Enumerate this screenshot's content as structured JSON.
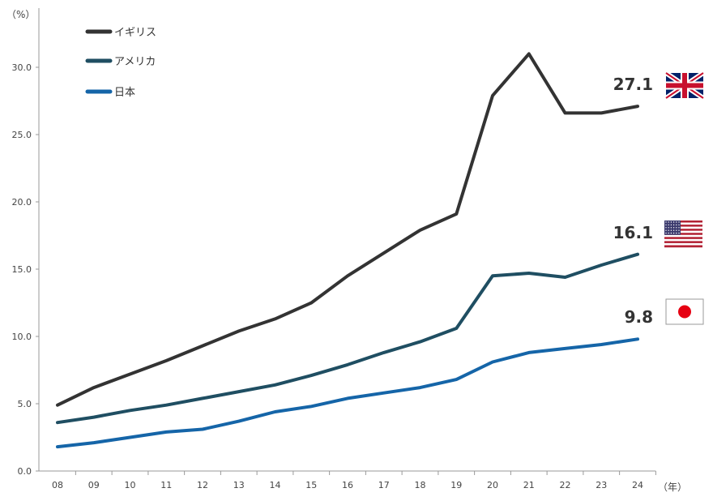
{
  "chart_data": {
    "type": "line",
    "y_unit_label": "（%）",
    "x_unit_label": "（年）",
    "x": [
      "08",
      "09",
      "10",
      "11",
      "12",
      "13",
      "14",
      "15",
      "16",
      "17",
      "18",
      "19",
      "20",
      "21",
      "22",
      "23",
      "24"
    ],
    "ylim": [
      0,
      30
    ],
    "y_ticks": [
      "0.0",
      "5.0",
      "10.0",
      "15.0",
      "20.0",
      "25.0",
      "30.0"
    ],
    "y_tick_values": [
      0,
      5,
      10,
      15,
      20,
      25,
      30
    ],
    "grid": false,
    "legend_position": "top-left",
    "series": [
      {
        "name": "イギリス",
        "color": "#333333",
        "values": [
          4.9,
          6.2,
          7.2,
          8.2,
          9.3,
          10.4,
          11.3,
          12.5,
          14.5,
          16.2,
          17.9,
          19.1,
          27.9,
          31.0,
          26.6,
          26.6,
          27.1
        ],
        "end_label": "27.1",
        "flag_icon": "uk-flag-icon"
      },
      {
        "name": "アメリカ",
        "color": "#1f4e62",
        "values": [
          3.6,
          4.0,
          4.5,
          4.9,
          5.4,
          5.9,
          6.4,
          7.1,
          7.9,
          8.8,
          9.6,
          10.6,
          14.5,
          14.7,
          14.4,
          15.3,
          16.1
        ],
        "end_label": "16.1",
        "flag_icon": "us-flag-icon"
      },
      {
        "name": "日本",
        "color": "#1565a8",
        "values": [
          1.8,
          2.1,
          2.5,
          2.9,
          3.1,
          3.7,
          4.4,
          4.8,
          5.4,
          5.8,
          6.2,
          6.8,
          8.1,
          8.8,
          9.1,
          9.4,
          9.8
        ],
        "end_label": "9.8",
        "flag_icon": "japan-flag-icon"
      }
    ]
  }
}
